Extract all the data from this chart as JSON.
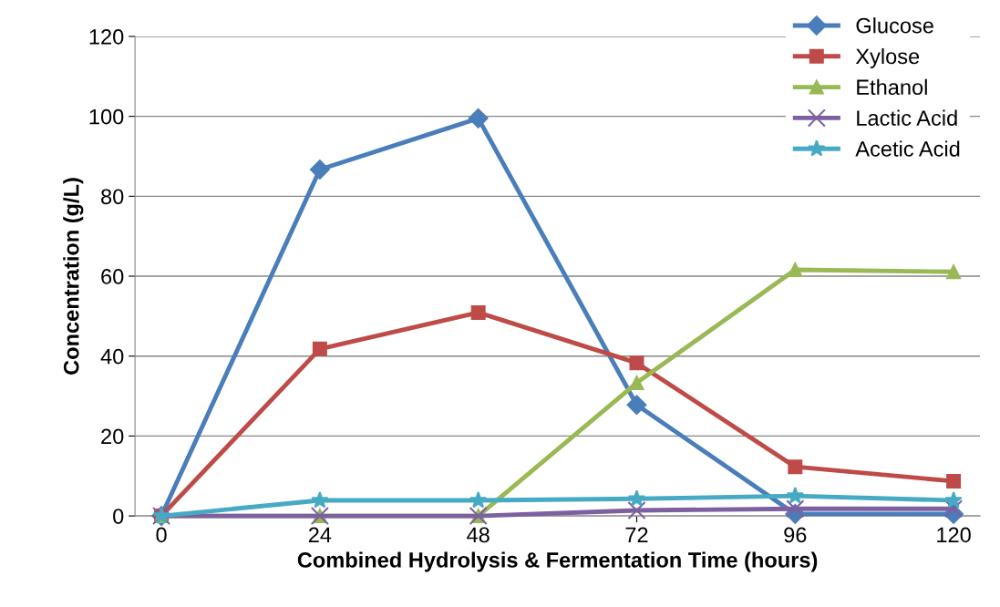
{
  "chart_data": {
    "type": "line",
    "xlabel": "Combined Hydrolysis & Fermentation Time (hours)",
    "ylabel": "Concentration (g/L)",
    "x": [
      0,
      24,
      48,
      72,
      96,
      120
    ],
    "series": [
      {
        "name": "Glucose",
        "color": "#4a7ebb",
        "marker": "diamond",
        "values": [
          0,
          86.7,
          99.5,
          27.8,
          0.5,
          0.5
        ]
      },
      {
        "name": "Xylose",
        "color": "#be4b48",
        "marker": "square",
        "values": [
          0,
          41.8,
          50.9,
          38.3,
          12.3,
          8.7
        ]
      },
      {
        "name": "Ethanol",
        "color": "#98b954",
        "marker": "triangle",
        "values": [
          0,
          0,
          0,
          33.3,
          61.6,
          61.1
        ]
      },
      {
        "name": "Lactic Acid",
        "color": "#7d60a0",
        "marker": "cross",
        "values": [
          0,
          0,
          0,
          1.4,
          1.8,
          1.8
        ]
      },
      {
        "name": "Acetic Acid",
        "color": "#46aac5",
        "marker": "star",
        "values": [
          0,
          3.9,
          3.9,
          4.3,
          5.0,
          3.9
        ]
      }
    ],
    "xlim": [
      -4,
      124
    ],
    "xticks": [
      0,
      24,
      48,
      72,
      96,
      120
    ],
    "ylim": [
      0,
      120
    ],
    "yticks": [
      0,
      20,
      40,
      60,
      80,
      100,
      120
    ],
    "grid": "y",
    "legend": "top right",
    "line_style": "solid"
  }
}
